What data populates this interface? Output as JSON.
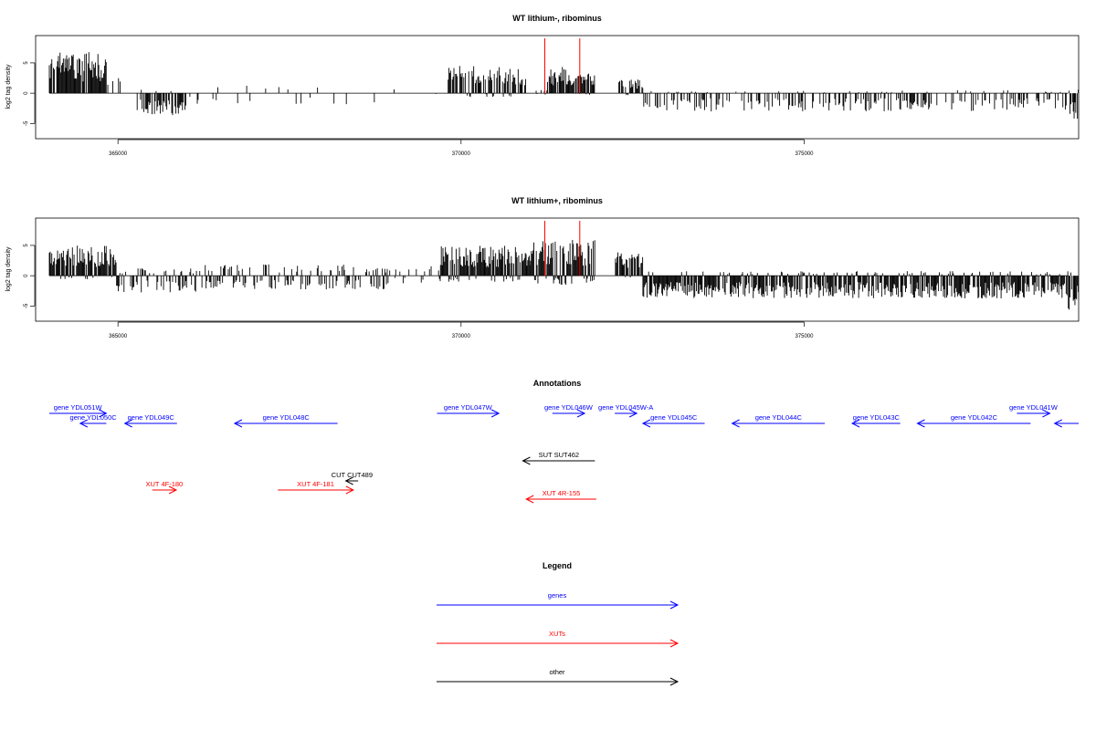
{
  "colors": {
    "genes": "#0000ff",
    "xuts": "#ff0000",
    "other": "#000000",
    "marker": "#ff0000",
    "bars": "#000000"
  },
  "chart_data": [
    {
      "type": "bar",
      "title": "WT lithium-, ribominus",
      "ylabel": "log2 tag density",
      "xlim": [
        363800,
        379000
      ],
      "ylim": [
        -7.5,
        9.5
      ],
      "xticks": [
        365000,
        370000,
        375000
      ],
      "xtick_labels": [
        "365000",
        "370000",
        "375000"
      ],
      "yticks": [
        -5,
        0,
        5
      ],
      "ytick_labels": [
        "-5",
        "0",
        "5"
      ],
      "marker_lines_x": [
        371220,
        371730
      ],
      "profile": [
        {
          "x": [
            364000,
            364840
          ],
          "pos": 5.5,
          "neg": 0,
          "density": 0.9
        },
        {
          "x": [
            364840,
            365060
          ],
          "pos": 2.0,
          "neg": 1.2,
          "density": 0.3
        },
        {
          "x": [
            365280,
            366000
          ],
          "pos": 0.5,
          "neg": 3.0,
          "density": 0.7
        },
        {
          "x": [
            366000,
            369000
          ],
          "pos": 1.0,
          "neg": 1.5,
          "density": 0.08
        },
        {
          "x": [
            369000,
            369800
          ],
          "pos": 0.5,
          "neg": 0.3,
          "density": 0.03
        },
        {
          "x": [
            369800,
            370950
          ],
          "pos": 3.6,
          "neg": 0.5,
          "density": 0.75
        },
        {
          "x": [
            370950,
            371260
          ],
          "pos": 0.5,
          "neg": 0.3,
          "density": 0.1
        },
        {
          "x": [
            371260,
            371950
          ],
          "pos": 3.6,
          "neg": 0.2,
          "density": 0.95
        },
        {
          "x": [
            372300,
            372650
          ],
          "pos": 2.0,
          "neg": 0.3,
          "density": 0.7
        },
        {
          "x": [
            372650,
            378850
          ],
          "pos": 0.4,
          "neg": 2.4,
          "density": 0.4
        },
        {
          "x": [
            378850,
            379000
          ],
          "pos": 0.5,
          "neg": 3.5,
          "density": 0.8
        }
      ]
    },
    {
      "type": "bar",
      "title": "WT lithium+, ribominus",
      "ylabel": "log2 tag density",
      "xlim": [
        363800,
        379000
      ],
      "ylim": [
        -7.5,
        9.5
      ],
      "xticks": [
        365000,
        370000,
        375000
      ],
      "xtick_labels": [
        "365000",
        "370000",
        "375000"
      ],
      "yticks": [
        -5,
        0,
        5
      ],
      "ytick_labels": [
        "-5",
        "0",
        "5"
      ],
      "marker_lines_x": [
        371220,
        371730
      ],
      "profile": [
        {
          "x": [
            364000,
            364980
          ],
          "pos": 4.0,
          "neg": 0.5,
          "density": 0.9
        },
        {
          "x": [
            364980,
            366200
          ],
          "pos": 1.0,
          "neg": 2.2,
          "density": 0.6
        },
        {
          "x": [
            366200,
            369000
          ],
          "pos": 1.5,
          "neg": 1.8,
          "density": 0.5
        },
        {
          "x": [
            369000,
            369700
          ],
          "pos": 1.8,
          "neg": 1.0,
          "density": 0.3
        },
        {
          "x": [
            369700,
            371000
          ],
          "pos": 4.0,
          "neg": 0.8,
          "density": 0.95
        },
        {
          "x": [
            371000,
            371950
          ],
          "pos": 4.8,
          "neg": 1.2,
          "density": 1.0
        },
        {
          "x": [
            372250,
            372650
          ],
          "pos": 3.2,
          "neg": 0.5,
          "density": 0.9
        },
        {
          "x": [
            372650,
            378850
          ],
          "pos": 0.6,
          "neg": 3.0,
          "density": 0.9
        },
        {
          "x": [
            378850,
            379000
          ],
          "pos": 0.5,
          "neg": 4.5,
          "density": 0.9
        }
      ]
    }
  ],
  "annotations": {
    "title": "Annotations",
    "features": [
      {
        "label": "gene YDL051W",
        "kind": "genes",
        "x1": 364000,
        "x2": 364830,
        "row": 0
      },
      {
        "label": "gene YDL050C",
        "kind": "genes",
        "x1": 364830,
        "x2": 364450,
        "row": 1
      },
      {
        "label": "gene YDL049C",
        "kind": "genes",
        "x1": 365860,
        "x2": 365100,
        "row": 1
      },
      {
        "label": "gene YDL048C",
        "kind": "genes",
        "x1": 368200,
        "x2": 366700,
        "row": 1
      },
      {
        "label": "gene YDL047W",
        "kind": "genes",
        "x1": 369650,
        "x2": 370550,
        "row": 0
      },
      {
        "label": "gene YDL046W",
        "kind": "genes",
        "x1": 371330,
        "x2": 371800,
        "row": 0
      },
      {
        "label": "gene YDL045W-A",
        "kind": "genes",
        "x1": 372240,
        "x2": 372560,
        "row": 0
      },
      {
        "label": "gene YDL045C",
        "kind": "genes",
        "x1": 373550,
        "x2": 372650,
        "row": 1
      },
      {
        "label": "gene YDL044C",
        "kind": "genes",
        "x1": 375300,
        "x2": 373950,
        "row": 1
      },
      {
        "label": "gene YDL043C",
        "kind": "genes",
        "x1": 376400,
        "x2": 375700,
        "row": 1
      },
      {
        "label": "gene YDL042C",
        "kind": "genes",
        "x1": 378300,
        "x2": 376650,
        "row": 1
      },
      {
        "label": "gene YDL041W",
        "kind": "genes",
        "x1": 378100,
        "x2": 378580,
        "row": 0
      },
      {
        "label": "",
        "kind": "genes",
        "x1": 379000,
        "x2": 378650,
        "row": 1
      },
      {
        "label": "SUT SUT462",
        "kind": "other",
        "x1": 371950,
        "x2": 370900,
        "row": 2
      },
      {
        "label": "CUT CUT489",
        "kind": "other",
        "x1": 368500,
        "x2": 368320,
        "row": 3
      },
      {
        "label": "XUT 4F-180",
        "kind": "xuts",
        "x1": 365500,
        "x2": 365850,
        "row": 4
      },
      {
        "label": "XUT 4F-181",
        "kind": "xuts",
        "x1": 367330,
        "x2": 368430,
        "row": 4
      },
      {
        "label": "XUT 4R-155",
        "kind": "xuts",
        "x1": 371970,
        "x2": 370950,
        "row": 5
      }
    ]
  },
  "legend": {
    "title": "Legend",
    "items": [
      {
        "label": "genes",
        "kind": "genes"
      },
      {
        "label": "XUTs",
        "kind": "xuts"
      },
      {
        "label": "other",
        "kind": "other"
      }
    ]
  }
}
